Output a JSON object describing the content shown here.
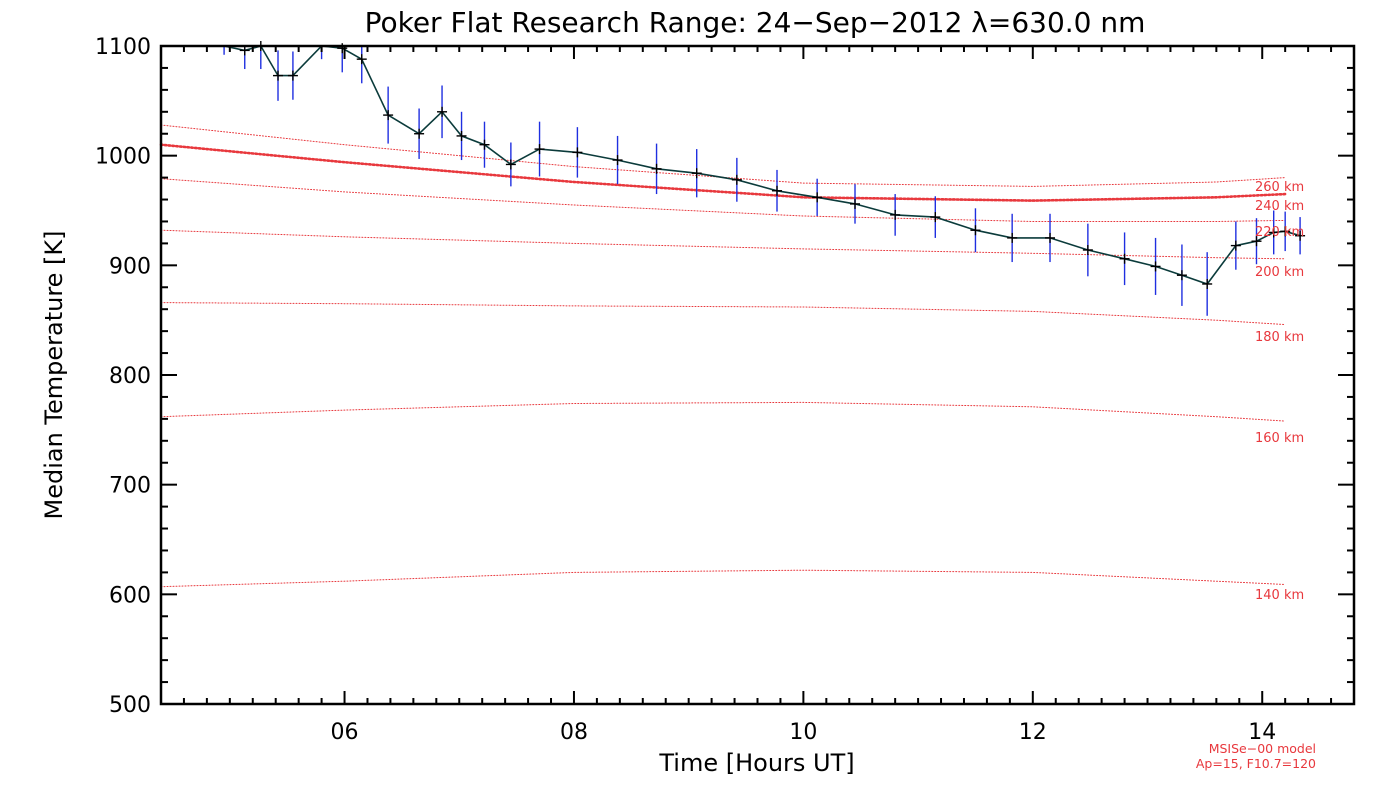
{
  "chart_data": {
    "type": "line",
    "title": "Poker Flat Research Range: 24−Sep−2012 λ=630.0 nm",
    "xlabel": "Time [Hours UT]",
    "ylabel": "Median Temperature [K]",
    "xlim": [
      4.4,
      14.8
    ],
    "ylim": [
      500,
      1100
    ],
    "x_ticks": [
      6,
      8,
      10,
      12,
      14
    ],
    "x_tick_labels": [
      "06",
      "08",
      "10",
      "12",
      "14"
    ],
    "y_ticks": [
      500,
      600,
      700,
      800,
      900,
      1000,
      1100
    ],
    "y_tick_labels": [
      "500",
      "600",
      "700",
      "800",
      "900",
      "1000",
      "1100"
    ],
    "grid": false,
    "colors": {
      "measurement_line": "#0b3b3b",
      "error_bar": "#1f2fe0",
      "marker": "#000000",
      "model": "#e8383d"
    },
    "series": [
      {
        "x": [
          4.95,
          5.13,
          5.27,
          5.42,
          5.55,
          5.8,
          5.98,
          6.15,
          6.38,
          6.65,
          6.85,
          7.02,
          7.22,
          7.45,
          7.7,
          8.03,
          8.38,
          8.72,
          9.07,
          9.42,
          9.77,
          10.12,
          10.45,
          10.8,
          11.15,
          11.5,
          11.82,
          12.15,
          12.48,
          12.8,
          13.07,
          13.3,
          13.52,
          13.77,
          13.95,
          14.1,
          14.2,
          14.33
        ],
        "y": [
          1108,
          1096,
          1100,
          1073,
          1073,
          1108,
          1098,
          1088,
          1037,
          1020,
          1040,
          1018,
          1010,
          992,
          1006,
          1003,
          996,
          988,
          984,
          978,
          968,
          962,
          956,
          946,
          944,
          932,
          925,
          925,
          914,
          906,
          899,
          891,
          883,
          918,
          922,
          930,
          931,
          927
        ],
        "error": [
          16,
          17,
          21,
          23,
          22,
          20,
          22,
          22,
          26,
          23,
          24,
          22,
          21,
          20,
          25,
          23,
          22,
          23,
          22,
          20,
          19,
          17,
          18,
          19,
          19,
          20,
          22,
          22,
          24,
          24,
          26,
          28,
          29,
          22,
          21,
          20,
          18,
          17
        ]
      }
    ],
    "model_curves": [
      {
        "label": "140 km",
        "x": [
          4.4,
          6.0,
          8.0,
          10.0,
          12.0,
          13.6,
          14.2
        ],
        "y": [
          607,
          612,
          620,
          622,
          620,
          612,
          609
        ]
      },
      {
        "label": "160 km",
        "x": [
          4.4,
          6.0,
          8.0,
          10.0,
          12.0,
          13.6,
          14.2
        ],
        "y": [
          762,
          768,
          774,
          775,
          771,
          762,
          758
        ]
      },
      {
        "label": "180 km",
        "x": [
          4.4,
          6.0,
          8.0,
          10.0,
          12.0,
          13.6,
          14.2
        ],
        "y": [
          866,
          865,
          863,
          862,
          858,
          850,
          846
        ]
      },
      {
        "label": "200 km",
        "x": [
          4.4,
          6.0,
          8.0,
          10.0,
          12.0,
          13.6,
          14.2
        ],
        "y": [
          932,
          926,
          920,
          915,
          911,
          907,
          906
        ]
      },
      {
        "label": "220 km",
        "x": [
          4.4,
          6.0,
          8.0,
          10.0,
          12.0,
          13.6,
          14.2
        ],
        "y": [
          979,
          967,
          955,
          945,
          940,
          940,
          941
        ]
      },
      {
        "label": "240 km",
        "x": [
          4.4,
          6.0,
          8.0,
          10.0,
          12.0,
          13.6,
          14.2
        ],
        "y": [
          1010,
          994,
          976,
          962,
          959,
          962,
          965
        ]
      },
      {
        "label": "260 km",
        "x": [
          4.4,
          6.0,
          8.0,
          10.0,
          12.0,
          13.6,
          14.2
        ],
        "y": [
          1028,
          1010,
          990,
          975,
          972,
          976,
          980
        ]
      }
    ],
    "highlighted_curve": "240 km",
    "model_note": [
      "MSISe−00 model",
      "Ap=15, F10.7=120"
    ]
  }
}
